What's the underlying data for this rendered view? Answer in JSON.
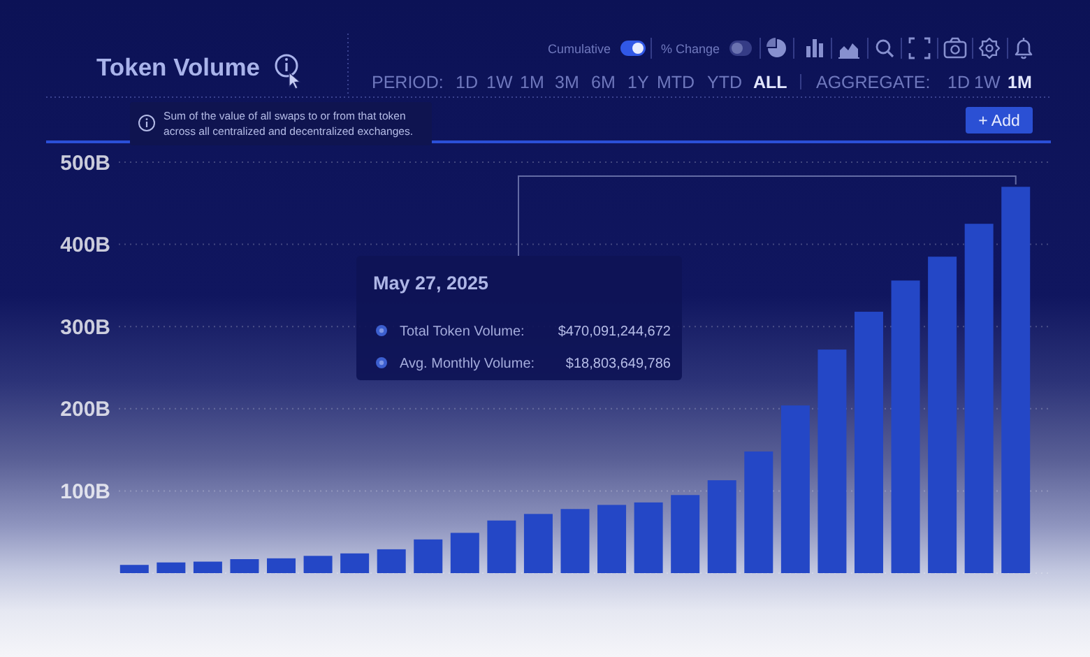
{
  "chart_data": {
    "type": "bar",
    "title": "Token Volume",
    "subtitle": "Sum of the value of all swaps to or from that token across all centralized and decentralized exchanges.",
    "categories": [
      null,
      null,
      null,
      null,
      null,
      null,
      null,
      null,
      null,
      null,
      null,
      null,
      null,
      null,
      null,
      null,
      null,
      null,
      null,
      null,
      null,
      null,
      null,
      null,
      null
    ],
    "values": [
      10,
      13,
      14,
      17,
      18,
      21,
      24,
      29,
      41,
      49,
      64,
      72,
      78,
      83,
      86,
      95,
      113,
      148,
      204,
      272,
      318,
      356,
      385,
      425,
      470
    ],
    "color": "#2447c6",
    "ylim": [
      0,
      500
    ],
    "yticks": [
      {
        "value": 0,
        "label": null
      },
      {
        "value": 100,
        "label": "100B"
      },
      {
        "value": 200,
        "label": "200B"
      },
      {
        "value": 300,
        "label": "300B"
      },
      {
        "value": 400,
        "label": "400B"
      },
      {
        "value": 500,
        "label": "500B"
      }
    ],
    "grid": "y",
    "tick_labels": "y",
    "annotations": [
      "May 27, 2025",
      "Total Token Volume:",
      "$470,091,244,672",
      "Avg. Monthly Volume:",
      "$18,803,649,786",
      "Cumulative",
      "% Change",
      "PERIOD:",
      "1D",
      "1W",
      "1M",
      "3M",
      "6M",
      "1Y",
      "MTD",
      "YTD",
      "ALL",
      "AGGREGATE:",
      "1D",
      "1W",
      "1M",
      "+ Add"
    ]
  }
}
